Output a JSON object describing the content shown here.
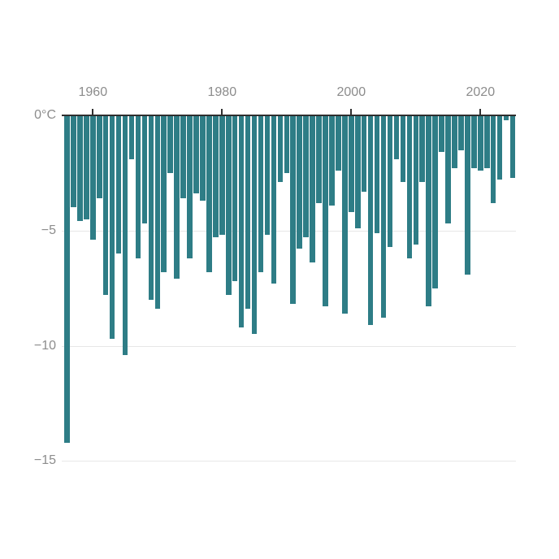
{
  "chart_data": {
    "type": "bar",
    "title": "",
    "xlabel": "",
    "ylabel": "0°C",
    "unit": "°C",
    "orientation": "vertical-downward",
    "grid": "horizontal",
    "legend": "none",
    "ylim": [
      -15,
      0
    ],
    "x": [
      1956,
      1957,
      1958,
      1959,
      1960,
      1961,
      1962,
      1963,
      1964,
      1965,
      1966,
      1967,
      1968,
      1969,
      1970,
      1971,
      1972,
      1973,
      1974,
      1975,
      1976,
      1977,
      1978,
      1979,
      1980,
      1981,
      1982,
      1983,
      1984,
      1985,
      1986,
      1987,
      1988,
      1989,
      1990,
      1991,
      1992,
      1993,
      1994,
      1995,
      1996,
      1997,
      1998,
      1999,
      2000,
      2001,
      2002,
      2003,
      2004,
      2005,
      2006,
      2007,
      2008,
      2009,
      2010,
      2011,
      2012,
      2013,
      2014,
      2015,
      2016,
      2017,
      2018,
      2019,
      2020,
      2021,
      2022,
      2023,
      2024,
      2025
    ],
    "values": [
      -14.2,
      -4.0,
      -4.6,
      -4.5,
      -5.4,
      -3.6,
      -7.8,
      -9.7,
      -6.0,
      -10.4,
      -1.9,
      -6.2,
      -4.7,
      -8.0,
      -8.4,
      -6.8,
      -2.5,
      -7.1,
      -3.6,
      -6.2,
      -3.4,
      -3.7,
      -6.8,
      -5.3,
      -5.2,
      -7.8,
      -7.2,
      -9.2,
      -8.4,
      -9.5,
      -6.8,
      -5.2,
      -7.3,
      -2.9,
      -2.5,
      -8.2,
      -5.8,
      -5.3,
      -6.4,
      -3.8,
      -8.3,
      -3.9,
      -2.4,
      -8.6,
      -4.2,
      -4.9,
      -3.3,
      -9.1,
      -5.1,
      -8.8,
      -5.7,
      -1.9,
      -2.9,
      -6.2,
      -5.6,
      -2.9,
      -8.3,
      -7.5,
      -1.6,
      -4.7,
      -2.3,
      -1.5,
      -6.9,
      -2.3,
      -2.4,
      -2.3,
      -3.8,
      -2.8,
      -0.2,
      -2.7
    ],
    "x_tick_labels": [
      "1960",
      "1980",
      "2000",
      "2020"
    ],
    "x_tick_years": [
      1960,
      1980,
      2000,
      2020
    ],
    "y_tick_labels": [
      "0°C",
      "−5",
      "−10",
      "−15"
    ],
    "y_tick_values": [
      0,
      -5,
      -10,
      -15
    ],
    "colors": {
      "bar": "#2e7d86",
      "axis": "#2f2f2f",
      "gridline": "#e7e7e7",
      "tick_label": "#8c8c8c"
    }
  }
}
